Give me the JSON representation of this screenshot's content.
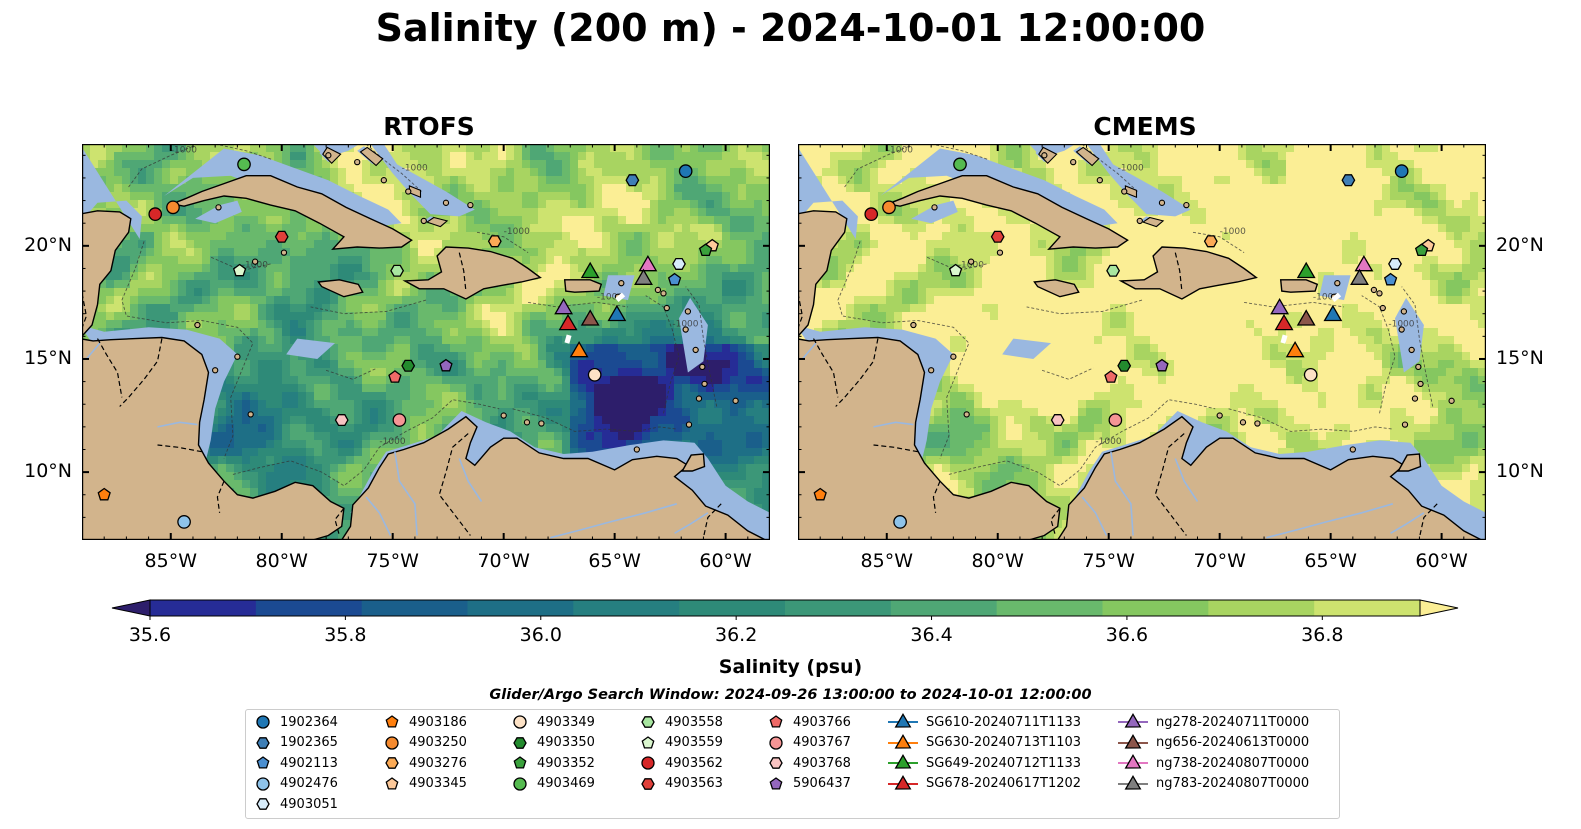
{
  "title": "Salinity (200 m) - 2024-10-01 12:00:00",
  "panels": [
    {
      "title": "RTOFS",
      "mode": "rtofs"
    },
    {
      "title": "CMEMS",
      "mode": "cmems"
    }
  ],
  "map": {
    "lon_range": [
      -89.0,
      -58.0
    ],
    "lat_range": [
      7.0,
      24.5
    ],
    "lon_ticks": [
      {
        "v": -85,
        "label": "85°W"
      },
      {
        "v": -80,
        "label": "80°W"
      },
      {
        "v": -75,
        "label": "75°W"
      },
      {
        "v": -70,
        "label": "70°W"
      },
      {
        "v": -65,
        "label": "65°W"
      },
      {
        "v": -60,
        "label": "60°W"
      }
    ],
    "lat_ticks": [
      {
        "v": 10,
        "label": "10°N"
      },
      {
        "v": 15,
        "label": "15°N"
      },
      {
        "v": 20,
        "label": "20°N"
      }
    ],
    "land_color": "#d2b48c",
    "shelf_color": "#9ab8e0",
    "contour_label": "-1000"
  },
  "colorbar": {
    "title": "Salinity (psu)",
    "min": 35.6,
    "max": 36.9,
    "step": 0.1,
    "ticks": [
      {
        "v": 35.6,
        "label": "35.6"
      },
      {
        "v": 35.8,
        "label": "35.8"
      },
      {
        "v": 36.0,
        "label": "36.0"
      },
      {
        "v": 36.2,
        "label": "36.2"
      },
      {
        "v": 36.4,
        "label": "36.4"
      },
      {
        "v": 36.6,
        "label": "36.6"
      },
      {
        "v": 36.8,
        "label": "36.8"
      }
    ],
    "colors": [
      "#2d1e6b",
      "#262c96",
      "#1b4a92",
      "#1a5f8b",
      "#1e6f86",
      "#267f80",
      "#2e8a78",
      "#3c9778",
      "#4fa775",
      "#69b96c",
      "#85c760",
      "#a8d461",
      "#cde36f",
      "#fbee95"
    ]
  },
  "legend": {
    "window_text": "Glider/Argo Search Window: 2024-09-26 13:00:00 to 2024-10-01 12:00:00",
    "columns": [
      [
        {
          "label": "1902364",
          "marker": "circle",
          "color": "#1f77b4"
        },
        {
          "label": "1902365",
          "marker": "hexagon",
          "color": "#3f7fb6"
        },
        {
          "label": "4902113",
          "marker": "pentagon",
          "color": "#4b8fd0"
        },
        {
          "label": "4902476",
          "marker": "circle",
          "color": "#8ec3ea"
        },
        {
          "label": "4903051",
          "marker": "hexagon",
          "color": "#d7ecfa"
        }
      ],
      [
        {
          "label": "4903186",
          "marker": "pentagon",
          "color": "#ff7f0e"
        },
        {
          "label": "4903250",
          "marker": "circle",
          "color": "#f58a2f"
        },
        {
          "label": "4903276",
          "marker": "hexagon",
          "color": "#fbaa56"
        },
        {
          "label": "4903345",
          "marker": "pentagon",
          "color": "#fdc99a"
        }
      ],
      [
        {
          "label": "4903349",
          "marker": "circle",
          "color": "#fde2c6"
        },
        {
          "label": "4903350",
          "marker": "hexagon",
          "color": "#238b2e"
        },
        {
          "label": "4903352",
          "marker": "pentagon",
          "color": "#3aa13c"
        },
        {
          "label": "4903469",
          "marker": "circle",
          "color": "#55bb50"
        }
      ],
      [
        {
          "label": "4903558",
          "marker": "hexagon",
          "color": "#a8e6a0"
        },
        {
          "label": "4903559",
          "marker": "pentagon",
          "color": "#dbf7cf"
        },
        {
          "label": "4903562",
          "marker": "circle",
          "color": "#d62728"
        },
        {
          "label": "4903563",
          "marker": "hexagon",
          "color": "#e0403a"
        }
      ],
      [
        {
          "label": "4903766",
          "marker": "pentagon",
          "color": "#ef6a67"
        },
        {
          "label": "4903767",
          "marker": "circle",
          "color": "#f59595"
        },
        {
          "label": "4903768",
          "marker": "hexagon",
          "color": "#f8c3c2"
        },
        {
          "label": "5906437",
          "marker": "pentagon",
          "color": "#9467bd"
        }
      ],
      [
        {
          "label": "SG610-20240711T1133",
          "marker": "triangle",
          "color": "#1f77b4"
        },
        {
          "label": "SG630-20240713T1103",
          "marker": "triangle",
          "color": "#ff7f0e"
        },
        {
          "label": "SG649-20240712T1133",
          "marker": "triangle",
          "color": "#2ca02c"
        },
        {
          "label": "SG678-20240617T1202",
          "marker": "triangle",
          "color": "#d62728"
        }
      ],
      [
        {
          "label": "ng278-20240711T0000",
          "marker": "triangle",
          "color": "#9467bd"
        },
        {
          "label": "ng656-20240613T0000",
          "marker": "triangle",
          "color": "#8c564b"
        },
        {
          "label": "ng738-20240807T0000",
          "marker": "triangle",
          "color": "#e377c2"
        },
        {
          "label": "ng783-20240807T0000",
          "marker": "triangle",
          "color": "#7f7f7f"
        }
      ]
    ]
  },
  "floats": [
    {
      "id": "1902364",
      "lon": -61.8,
      "lat": 23.3
    },
    {
      "id": "1902365",
      "lon": -64.2,
      "lat": 22.9
    },
    {
      "id": "4902113",
      "lon": -62.3,
      "lat": 18.5
    },
    {
      "id": "4902476",
      "lon": -84.4,
      "lat": 7.8
    },
    {
      "id": "4903051",
      "lon": -62.1,
      "lat": 19.2
    },
    {
      "id": "4903186",
      "lon": -88.0,
      "lat": 9.0
    },
    {
      "id": "4903250",
      "lon": -84.9,
      "lat": 21.7
    },
    {
      "id": "4903276",
      "lon": -70.4,
      "lat": 20.2
    },
    {
      "id": "4903345",
      "lon": -60.6,
      "lat": 20.0
    },
    {
      "id": "4903349",
      "lon": -65.9,
      "lat": 14.3
    },
    {
      "id": "4903350",
      "lon": -74.3,
      "lat": 14.7
    },
    {
      "id": "4903352",
      "lon": -60.9,
      "lat": 19.8
    },
    {
      "id": "4903469",
      "lon": -81.7,
      "lat": 23.6
    },
    {
      "id": "4903558",
      "lon": -74.8,
      "lat": 18.9
    },
    {
      "id": "4903559",
      "lon": -81.9,
      "lat": 18.9
    },
    {
      "id": "4903562",
      "lon": -85.7,
      "lat": 21.4
    },
    {
      "id": "4903563",
      "lon": -80.0,
      "lat": 20.4
    },
    {
      "id": "4903766",
      "lon": -74.9,
      "lat": 14.2
    },
    {
      "id": "4903767",
      "lon": -74.7,
      "lat": 12.3
    },
    {
      "id": "4903768",
      "lon": -77.3,
      "lat": 12.3
    },
    {
      "id": "5906437",
      "lon": -72.6,
      "lat": 14.7
    }
  ],
  "gliders": [
    {
      "id": "SG610-20240711T1133",
      "lon": -64.9,
      "lat": 17.0
    },
    {
      "id": "SG630-20240713T1103",
      "lon": -66.6,
      "lat": 15.4
    },
    {
      "id": "SG649-20240712T1133",
      "lon": -66.1,
      "lat": 18.9
    },
    {
      "id": "SG678-20240617T1202",
      "lon": -67.1,
      "lat": 16.6
    },
    {
      "id": "ng278-20240711T0000",
      "lon": -67.3,
      "lat": 17.3
    },
    {
      "id": "ng656-20240613T0000",
      "lon": -66.1,
      "lat": 16.8
    },
    {
      "id": "ng738-20240807T0000",
      "lon": -63.5,
      "lat": 19.2
    },
    {
      "id": "ng783-20240807T0000",
      "lon": -63.7,
      "lat": 18.6
    }
  ]
}
